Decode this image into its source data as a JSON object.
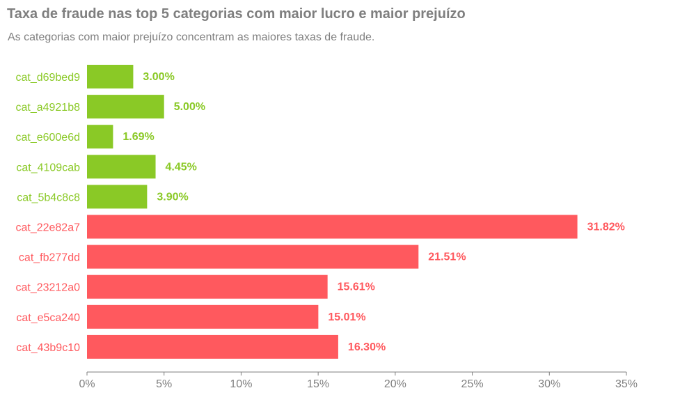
{
  "title": "Taxa de fraude nas top 5 categorias com maior lucro e maior prejuízo",
  "subtitle": "As categorias com maior prejuízo concentram as maiores taxas de fraude.",
  "colors": {
    "profit": "#8ac926",
    "loss": "#ff595e",
    "axis": "#7f7f7f",
    "text_muted": "#7f7f7f"
  },
  "chart_data": {
    "type": "bar",
    "orientation": "horizontal",
    "categories": [
      "cat_d69bed9",
      "cat_a4921b8",
      "cat_e600e6d",
      "cat_4109cab",
      "cat_5b4c8c8",
      "cat_22e82a7",
      "cat_fb277dd",
      "cat_23212a0",
      "cat_e5ca240",
      "cat_43b9c10"
    ],
    "values": [
      3.0,
      5.0,
      1.69,
      4.45,
      3.9,
      31.82,
      21.51,
      15.61,
      15.01,
      16.3
    ],
    "value_labels": [
      "3.00%",
      "5.00%",
      "1.69%",
      "4.45%",
      "3.90%",
      "31.82%",
      "21.51%",
      "15.61%",
      "15.01%",
      "16.30%"
    ],
    "groups": [
      "profit",
      "profit",
      "profit",
      "profit",
      "profit",
      "loss",
      "loss",
      "loss",
      "loss",
      "loss"
    ],
    "xlim": [
      0,
      35
    ],
    "xticks": [
      0,
      5,
      10,
      15,
      20,
      25,
      30,
      35
    ],
    "xtick_labels": [
      "0%",
      "5%",
      "10%",
      "15%",
      "20%",
      "25%",
      "30%",
      "35%"
    ],
    "grid": false,
    "legend": "none"
  }
}
